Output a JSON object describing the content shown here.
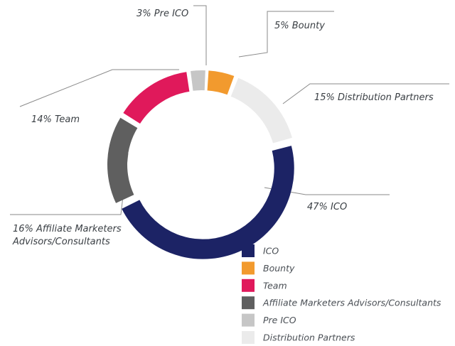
{
  "chart_data": {
    "type": "donut",
    "categories": [
      "ICO",
      "Bounty",
      "Team",
      "Affiliate Marketers Advisors/Consultants",
      "Pre ICO",
      "Distribution Partners"
    ],
    "values": [
      47,
      5,
      14,
      16,
      3,
      15
    ],
    "value_labels": [
      "47% ICO",
      "5% Bounty",
      "14% Team",
      "16% Affiliate Marketers Advisors/Consultants",
      "3% Pre ICO",
      "15% Distribution Partners"
    ],
    "colors": [
      "#1c2365",
      "#f29a2e",
      "#e0195b",
      "#5f5f5f",
      "#c6c6c6",
      "#ebebeb"
    ],
    "legend": "bottom-right"
  }
}
